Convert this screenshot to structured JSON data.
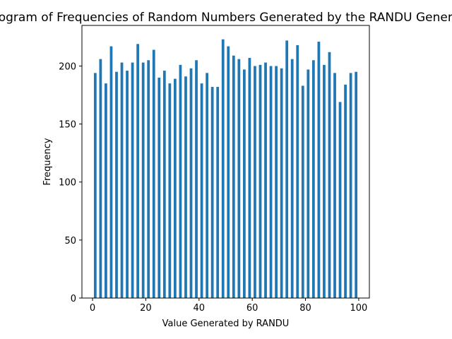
{
  "chart_data": {
    "type": "bar",
    "title": "Histogram of Frequencies of Random Numbers Generated by the RANDU Generator",
    "xlabel": "Value Generated by RANDU",
    "ylabel": "Frequency",
    "xlim": [
      -4,
      104
    ],
    "ylim": [
      0,
      235
    ],
    "xticks": [
      0,
      20,
      40,
      60,
      80,
      100
    ],
    "yticks": [
      0,
      50,
      100,
      150,
      200
    ],
    "bar_width": 1,
    "bar_color": "#1f77b4",
    "grid": false,
    "legend": "none",
    "x": [
      1,
      3,
      5,
      7,
      9,
      11,
      13,
      15,
      17,
      19,
      21,
      23,
      25,
      27,
      29,
      31,
      33,
      35,
      37,
      39,
      41,
      43,
      45,
      47,
      49,
      51,
      53,
      55,
      57,
      59,
      61,
      63,
      65,
      67,
      69,
      71,
      73,
      75,
      77,
      79,
      81,
      83,
      85,
      87,
      89,
      91,
      93,
      95,
      97,
      99
    ],
    "values": [
      194,
      206,
      185,
      217,
      195,
      203,
      196,
      203,
      219,
      203,
      205,
      214,
      190,
      196,
      185,
      189,
      201,
      191,
      198,
      205,
      185,
      194,
      182,
      182,
      223,
      217,
      209,
      206,
      197,
      207,
      200,
      201,
      203,
      200,
      200,
      198,
      222,
      206,
      218,
      183,
      197,
      205,
      221,
      201,
      212,
      194,
      169,
      184,
      194,
      195
    ]
  }
}
